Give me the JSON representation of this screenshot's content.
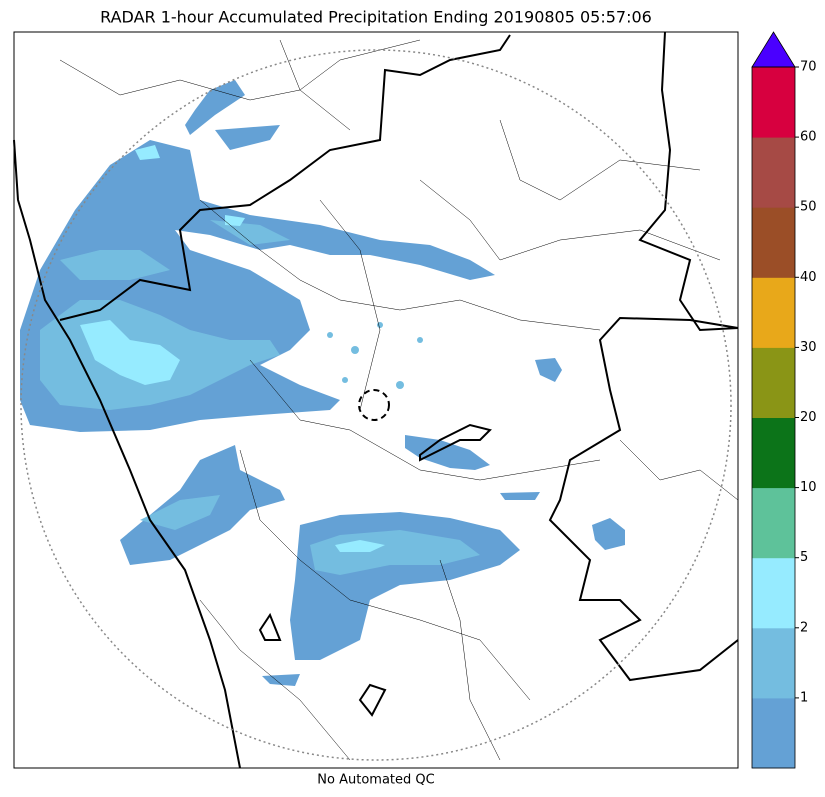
{
  "title": "RADAR 1-hour Accumulated Precipitation Ending 20190805 05:57:06",
  "footer": "No Automated QC",
  "colorbar": {
    "ticks": [
      1,
      2,
      5,
      10,
      20,
      30,
      40,
      50,
      60,
      70
    ],
    "colors": [
      "#64a1d5",
      "#74bde0",
      "#96ebff",
      "#5ec29a",
      "#0c7419",
      "#8a9516",
      "#e8a81a",
      "#9b4e27",
      "#a64a45",
      "#d7003f",
      "#4a00ff"
    ]
  }
}
